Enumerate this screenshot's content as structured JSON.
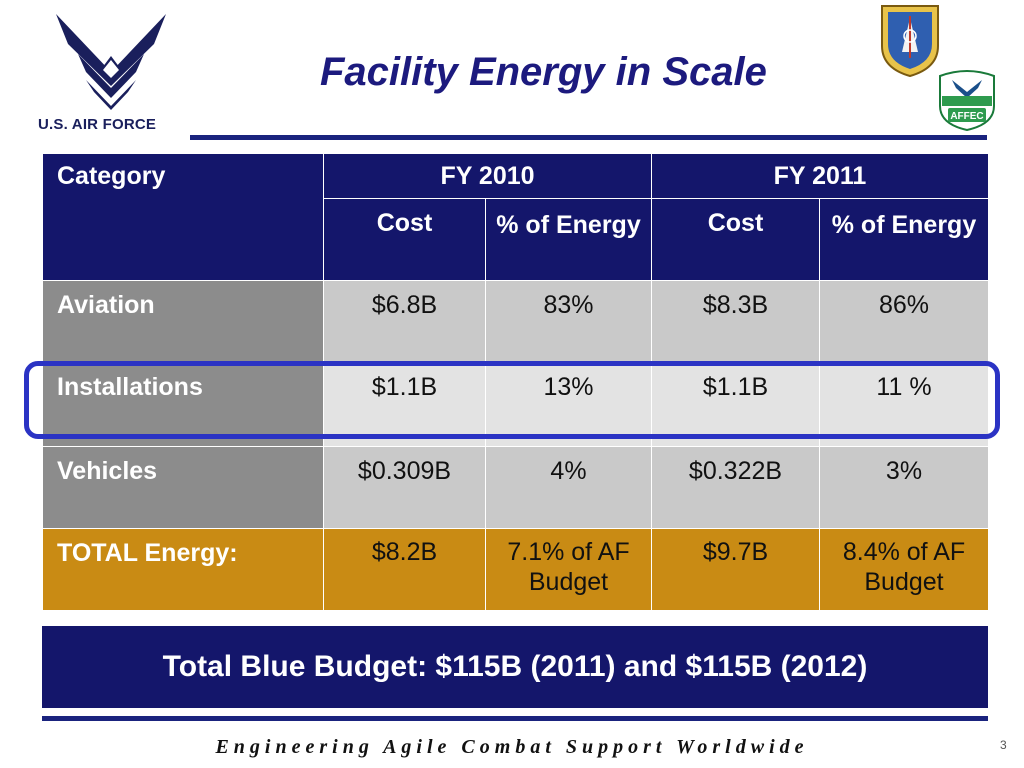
{
  "header": {
    "org_name": "U.S. AIR FORCE",
    "title": "Facility Energy in Scale",
    "badge_text": "AFFEC"
  },
  "table": {
    "col_category": "Category",
    "fy_headers": [
      "FY 2010",
      "FY 2011"
    ],
    "sub_cost": "Cost",
    "sub_pct": "% of Energy",
    "rows": [
      {
        "category": "Aviation",
        "fy2010_cost": "$6.8B",
        "fy2010_pct": "83%",
        "fy2011_cost": "$8.3B",
        "fy2011_pct": "86%"
      },
      {
        "category": "Installations",
        "fy2010_cost": "$1.1B",
        "fy2010_pct": "13%",
        "fy2011_cost": "$1.1B",
        "fy2011_pct": "11 %"
      },
      {
        "category": "Vehicles",
        "fy2010_cost": "$0.309B",
        "fy2010_pct": "4%",
        "fy2011_cost": "$0.322B",
        "fy2011_pct": "3%"
      },
      {
        "category": "TOTAL Energy:",
        "fy2010_cost": "$8.2B",
        "fy2010_pct": "7.1% of AF Budget",
        "fy2011_cost": "$9.7B",
        "fy2011_pct": "8.4% of AF Budget"
      }
    ]
  },
  "banner": "Total Blue Budget: $115B (2011) and $115B (2012)",
  "footer": "Engineering Agile Combat Support Worldwide",
  "page_number": "3",
  "colors": {
    "navy": "#14166b",
    "gray_category": "#8c8c8c",
    "gray_cell": "#c9c9c9",
    "highlight_row": "#e3e3e3",
    "gold_total": "#c98b14",
    "highlight_border": "#2b33c4"
  }
}
